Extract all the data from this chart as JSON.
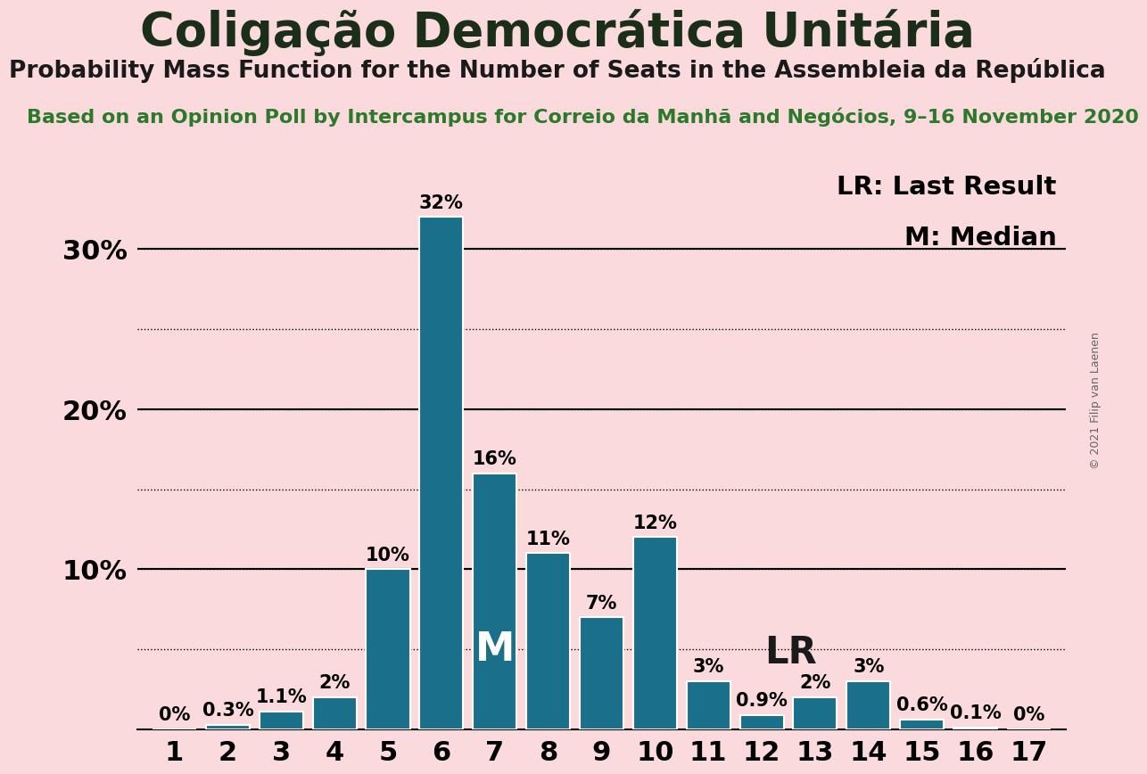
{
  "title": "Coligação Democrática Unitária",
  "subtitle": "Probability Mass Function for the Number of Seats in the Assembleia da República",
  "source_line": "Based on an Opinion Poll by Intercampus for Correio da Manhã and Negócios, 9–16 November 2020",
  "copyright": "© 2021 Filip van Laenen",
  "seats": [
    1,
    2,
    3,
    4,
    5,
    6,
    7,
    8,
    9,
    10,
    11,
    12,
    13,
    14,
    15,
    16,
    17
  ],
  "probabilities": [
    0.0,
    0.3,
    1.1,
    2.0,
    10.0,
    32.0,
    16.0,
    11.0,
    7.0,
    12.0,
    3.0,
    0.9,
    2.0,
    3.0,
    0.6,
    0.1,
    0.0
  ],
  "bar_color": "#1a6f8a",
  "background_color": "#fadadd",
  "title_color": "#1a2e1a",
  "subtitle_color": "#1a1a1a",
  "source_color": "#2a7a2a",
  "median_seat": 7,
  "last_result_seat": 12,
  "ylim": [
    0,
    35
  ],
  "legend_lr": "LR: Last Result",
  "legend_m": "M: Median",
  "bar_label_fontsize": 15,
  "title_fontsize": 38,
  "subtitle_fontsize": 19,
  "source_fontsize": 16,
  "axis_tick_fontsize": 22,
  "legend_fontsize": 21,
  "median_label_fontsize": 32,
  "lr_label_fontsize": 30,
  "copyright_fontsize": 9
}
